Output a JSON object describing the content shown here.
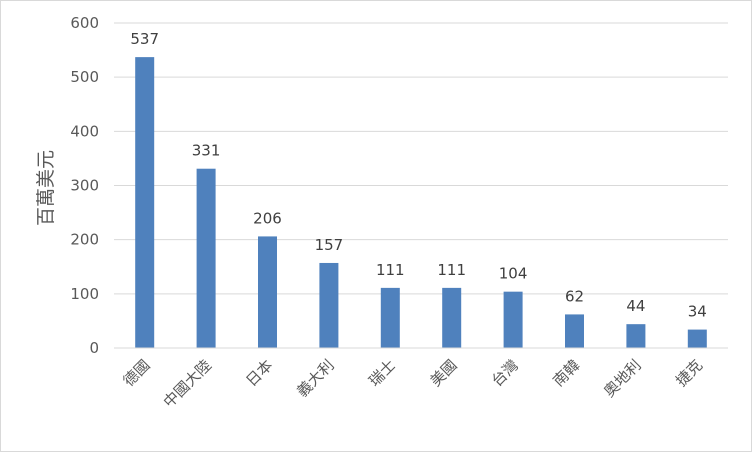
{
  "chart_data": {
    "type": "bar",
    "title": "",
    "xlabel": "",
    "ylabel": "百萬美元",
    "categories": [
      "德國",
      "中國大陸",
      "日本",
      "義大利",
      "瑞士",
      "美國",
      "台灣",
      "南韓",
      "奧地利",
      "捷克"
    ],
    "values": [
      537,
      331,
      206,
      157,
      111,
      111,
      104,
      62,
      44,
      34
    ],
    "ylim": [
      0,
      600
    ],
    "yticks": [
      0,
      100,
      200,
      300,
      400,
      500,
      600
    ],
    "grid": true,
    "legend": "none",
    "bar_color": "#4f81bd",
    "grid_color": "#d9d9d9"
  }
}
